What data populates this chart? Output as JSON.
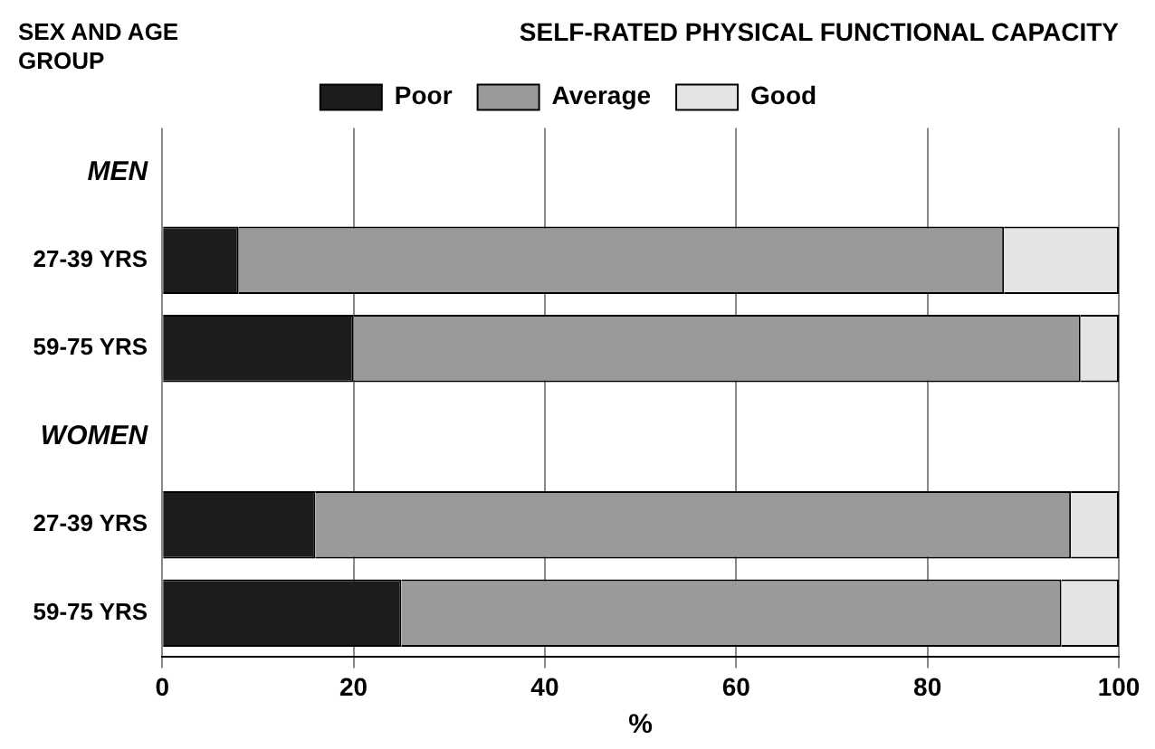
{
  "chart_data": {
    "type": "bar",
    "orientation": "horizontal",
    "stacked": true,
    "title": "SELF-RATED PHYSICAL FUNCTIONAL CAPACITY",
    "ylabel": "SEX AND AGE GROUP",
    "xlabel": "%",
    "categories": [
      "MEN",
      "27-39 YRS",
      "59-75 YRS",
      "WOMEN",
      "27-39 YRS",
      "59-75 YRS"
    ],
    "series": [
      {
        "name": "Poor",
        "color": "#1c1c1c",
        "values": [
          null,
          8,
          20,
          null,
          16,
          25
        ]
      },
      {
        "name": "Average",
        "color": "#9a9a9a",
        "values": [
          null,
          80,
          76,
          null,
          79,
          69
        ]
      },
      {
        "name": "Good",
        "color": "#e4e4e4",
        "values": [
          null,
          12,
          4,
          null,
          5,
          6
        ]
      }
    ],
    "xlim": [
      0,
      100
    ],
    "xticks": [
      0,
      20,
      40,
      60,
      80,
      100
    ],
    "grid": "x",
    "legend": "top"
  }
}
